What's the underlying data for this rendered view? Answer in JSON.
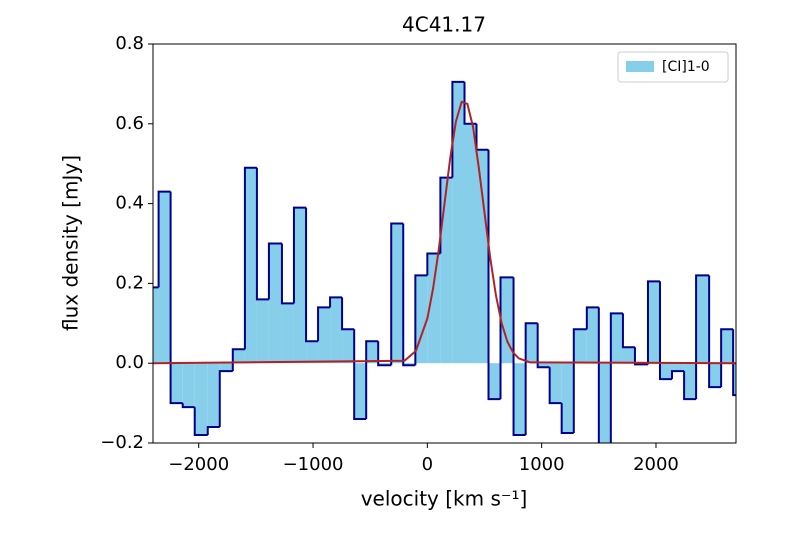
{
  "chart_data": {
    "type": "histogram",
    "title": "4C41.17",
    "xlabel": "velocity [km s⁻¹]",
    "ylabel": "flux density [mJy]",
    "xlim": [
      -2400,
      2700
    ],
    "ylim": [
      -0.2,
      0.8
    ],
    "xticks": [
      {
        "value": -2000,
        "label": "−2000"
      },
      {
        "value": -1000,
        "label": "−1000"
      },
      0,
      1000,
      2000
    ],
    "yticks": [
      {
        "value": -0.2,
        "label": "−0.2"
      },
      {
        "value": 0,
        "label": "0.0"
      },
      0.2,
      0.4,
      0.6,
      0.8
    ],
    "legend": "upper right",
    "series": [
      {
        "name": "[CI]1-0",
        "color": "#87ceeb",
        "edgecolor": "#00008b",
        "bins": [
          -2456,
          -2351,
          -2246,
          -2140,
          -2035,
          -1921,
          -1816,
          -1702,
          -1596,
          -1491,
          -1386,
          -1272,
          -1167,
          -1061,
          -956,
          -851,
          -746,
          -640,
          -535,
          -430,
          -316,
          -211,
          -105,
          0,
          114,
          219,
          325,
          430,
          535,
          640,
          754,
          860,
          965,
          1070,
          1175,
          1281,
          1395,
          1500,
          1605,
          1711,
          1816,
          1930,
          2035,
          2140,
          2246,
          2351,
          2465,
          2570,
          2675,
          2780
        ],
        "values": [
          0.19,
          0.43,
          -0.1,
          -0.11,
          -0.18,
          -0.16,
          -0.02,
          0.035,
          0.49,
          0.16,
          0.3,
          0.15,
          0.39,
          0.055,
          0.14,
          0.165,
          0.085,
          -0.14,
          0.055,
          -0.005,
          0.35,
          -0.005,
          0.22,
          0.275,
          0.465,
          0.705,
          0.6,
          0.535,
          -0.09,
          0.215,
          -0.18,
          0.1,
          -0.01,
          -0.1,
          -0.175,
          0.085,
          0.14,
          -0.23,
          0.125,
          0.04,
          -0.003,
          0.205,
          -0.04,
          -0.02,
          -0.09,
          0.22,
          -0.06,
          0.085,
          -0.08
        ]
      },
      {
        "type": "line",
        "color": "#b22222",
        "x": [
          -2400,
          -200,
          -100,
          0,
          50,
          100,
          150,
          200,
          250,
          300,
          350,
          400,
          450,
          500,
          550,
          600,
          650,
          700,
          750,
          800,
          900,
          2700
        ],
        "values": [
          0,
          0.006,
          0.031,
          0.112,
          0.187,
          0.285,
          0.4,
          0.514,
          0.606,
          0.655,
          0.65,
          0.592,
          0.49,
          0.377,
          0.264,
          0.17,
          0.1,
          0.054,
          0.027,
          0.012,
          0.002,
          0
        ]
      }
    ]
  }
}
